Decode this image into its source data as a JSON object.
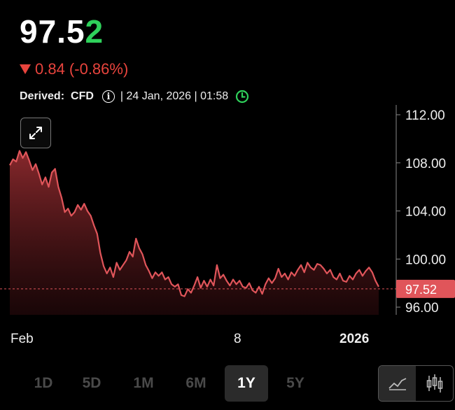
{
  "header": {
    "price_main": "97.5",
    "price_last_digit": "2",
    "change": "0.84 (-0.86%)",
    "derived_label": "Derived:",
    "derived_value": "CFD",
    "info_icon": "i",
    "timestamp": "| 24 Jan, 2026 | 01:58",
    "colors": {
      "up": "#2fd15b",
      "down": "#e8443d",
      "line": "#e0555a"
    }
  },
  "chart_data": {
    "type": "area",
    "x_tick_labels": [
      "Feb",
      "8",
      "2026"
    ],
    "y_tick_labels": [
      "112.00",
      "108.00",
      "104.00",
      "100.00",
      "96.00"
    ],
    "current_price_label": "97.52",
    "ylim": [
      94.8,
      112.8
    ],
    "reference_line": 97.52,
    "series": [
      {
        "values": [
          107.8,
          108.3,
          108.1,
          109.0,
          108.4,
          108.9,
          108.2,
          107.4,
          107.9,
          107.1,
          106.2,
          106.8,
          106.0,
          107.2,
          107.5,
          106.0,
          105.1,
          103.9,
          104.2,
          103.6,
          103.9,
          104.5,
          104.1,
          104.6,
          104.0,
          103.6,
          102.8,
          102.1,
          100.5,
          99.4,
          98.8,
          99.3,
          98.5,
          99.7,
          99.1,
          99.5,
          99.9,
          100.6,
          100.2,
          101.7,
          100.9,
          100.4,
          99.5,
          99.0,
          98.4,
          98.9,
          98.6,
          98.9,
          98.3,
          98.5,
          97.9,
          97.7,
          97.9,
          97.0,
          96.9,
          97.5,
          97.2,
          97.8,
          98.5,
          97.6,
          98.2,
          97.7,
          98.3,
          97.8,
          99.5,
          98.4,
          98.7,
          98.2,
          97.8,
          98.3,
          97.9,
          98.2,
          97.7,
          97.6,
          98.0,
          97.4,
          97.2,
          97.7,
          97.1,
          97.9,
          98.4,
          98.0,
          98.4,
          99.2,
          98.5,
          98.8,
          98.3,
          98.9,
          98.6,
          99.1,
          99.5,
          98.9,
          99.7,
          99.3,
          99.1,
          99.6,
          99.5,
          99.2,
          98.8,
          99.1,
          98.5,
          98.3,
          98.8,
          98.2,
          98.1,
          98.6,
          98.3,
          98.8,
          99.1,
          98.6,
          99.0,
          99.3,
          98.9,
          98.2,
          97.7
        ]
      }
    ],
    "grid": false
  },
  "toolbar": {
    "ranges": [
      "1D",
      "5D",
      "1M",
      "6M",
      "1Y",
      "5Y"
    ],
    "active_range": "1Y"
  }
}
